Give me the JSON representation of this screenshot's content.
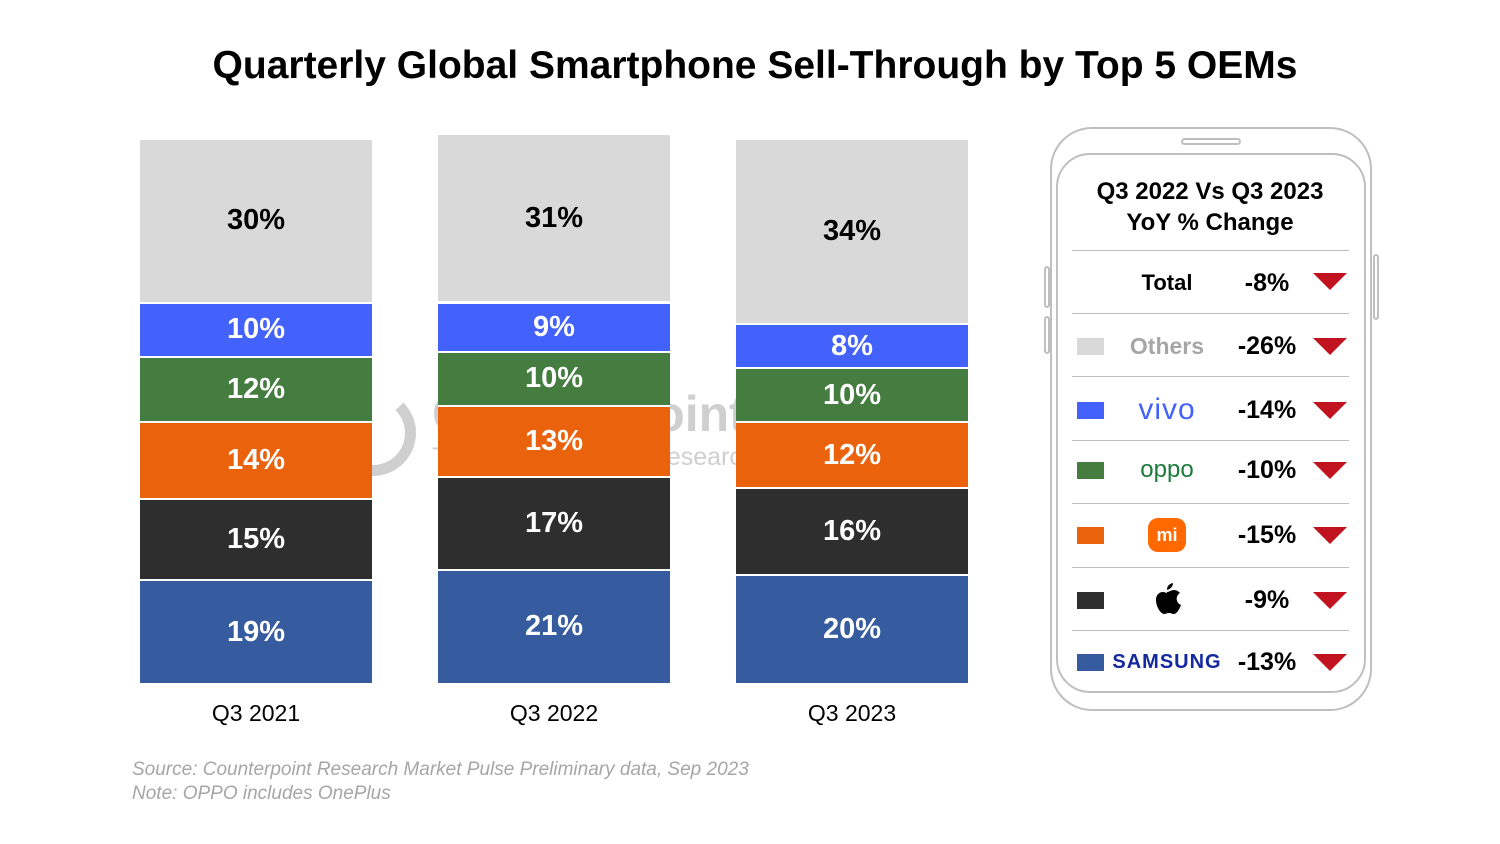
{
  "chart_data": {
    "type": "bar",
    "stacked": true,
    "title": "Quarterly Global Smartphone Sell-Through by Top 5 OEMs",
    "categories": [
      "Q3 2021",
      "Q3 2022",
      "Q3 2023"
    ],
    "ylabel": "",
    "xlabel": "",
    "ylim": [
      0,
      100
    ],
    "unit": "%",
    "series": [
      {
        "name": "Samsung",
        "color": "#365C9F",
        "values": [
          19,
          21,
          20
        ]
      },
      {
        "name": "Apple",
        "color": "#2E2E2E",
        "values": [
          15,
          17,
          16
        ]
      },
      {
        "name": "Xiaomi",
        "color": "#EB620C",
        "values": [
          14,
          13,
          12
        ]
      },
      {
        "name": "OPPO",
        "color": "#457C40",
        "values": [
          12,
          10,
          10
        ]
      },
      {
        "name": "vivo",
        "color": "#4361FB",
        "values": [
          10,
          9,
          8
        ]
      },
      {
        "name": "Others",
        "color": "#D9D9D9",
        "values": [
          30,
          31,
          34
        ]
      }
    ]
  },
  "watermark": {
    "name": "Counterpoint",
    "tagline": "Technology Market Research"
  },
  "source": "Source: Counterpoint Research Market Pulse Preliminary data, Sep 2023",
  "note": "Note: OPPO includes OnePlus",
  "yoy": {
    "title_line1": "Q3 2022 Vs Q3 2023",
    "title_line2": "YoY % Change",
    "rows": [
      {
        "label": "Total",
        "change": "-8%"
      },
      {
        "label": "Others",
        "change": "-26%",
        "color": "#D9D9D9"
      },
      {
        "label": "vivo",
        "change": "-14%",
        "color": "#4361FB"
      },
      {
        "label": "oppo",
        "change": "-10%",
        "color": "#457C40"
      },
      {
        "label": "mi",
        "change": "-15%",
        "color": "#EB620C"
      },
      {
        "label": "Apple",
        "change": "-9%",
        "color": "#2E2E2E"
      },
      {
        "label": "SAMSUNG",
        "change": "-13%",
        "color": "#365C9F"
      }
    ],
    "arrow_color": "#C0121F"
  }
}
